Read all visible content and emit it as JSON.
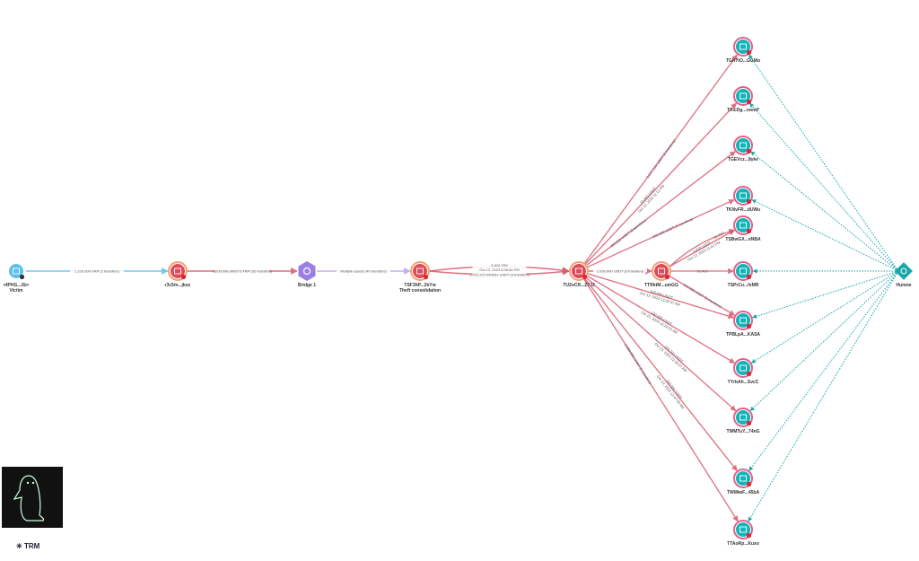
{
  "colors": {
    "victim": "#5bc0eb",
    "theft": "#e04b5a",
    "bridge": "#9b7fe6",
    "cashout": "#14b3b8",
    "huione": "#16a8a8",
    "flow": "#d9566a",
    "exchange_flow": "#1aa6a6",
    "ring": "#f09090"
  },
  "nodes": [
    {
      "id": "victim",
      "label": "r4PHG...iSrr",
      "sublabel": "Victim",
      "type": "victim",
      "icon": "wallet-icon"
    },
    {
      "id": "r3c",
      "label": "r3c5m...jkuc",
      "sublabel": "",
      "type": "theft",
      "icon": "wallet-icon"
    },
    {
      "id": "bridge",
      "label": "Bridge 1",
      "sublabel": "",
      "type": "bridge",
      "icon": "gear-icon"
    },
    {
      "id": "tsf",
      "label": "TSF3hP...2bYw",
      "sublabel": "Theft consolidation",
      "type": "theft",
      "icon": "wallet-icon"
    },
    {
      "id": "tuz",
      "label": "TUZeCR...Z7JJ",
      "sublabel": "",
      "type": "theft",
      "icon": "wallet-icon"
    },
    {
      "id": "ttr",
      "label": "TTRktM...umGG",
      "sublabel": "",
      "type": "theft",
      "icon": "wallet-icon"
    },
    {
      "id": "d1",
      "label": "TGR7tO...GGMo",
      "type": "cashout",
      "icon": "wallet-icon"
    },
    {
      "id": "d2",
      "label": "TXicDg...cwmP",
      "type": "cashout",
      "icon": "wallet-icon"
    },
    {
      "id": "d3",
      "label": "TGEVcz...8yke",
      "type": "cashout",
      "icon": "wallet-icon"
    },
    {
      "id": "d4",
      "label": "TKNvFR...dUWu",
      "type": "cashout",
      "icon": "wallet-icon"
    },
    {
      "id": "d5",
      "label": "TSBwGX...nNBA",
      "type": "cashout",
      "icon": "wallet-icon"
    },
    {
      "id": "d6",
      "label": "TSPrCu...fxMR",
      "type": "cashout",
      "icon": "wallet-icon"
    },
    {
      "id": "d7",
      "label": "TPBLpA...KASA",
      "type": "cashout",
      "icon": "wallet-icon"
    },
    {
      "id": "d8",
      "label": "TYrbAh...SvcC",
      "type": "cashout",
      "icon": "wallet-icon"
    },
    {
      "id": "d9",
      "label": "TWMTuY...74nG",
      "type": "cashout",
      "icon": "wallet-icon"
    },
    {
      "id": "d10",
      "label": "TWMiwF...45bA",
      "type": "cashout",
      "icon": "wallet-icon"
    },
    {
      "id": "d11",
      "label": "TTAoRp...Kuxo",
      "type": "cashout",
      "icon": "wallet-icon"
    },
    {
      "id": "huione",
      "label": "Huione",
      "type": "huione",
      "icon": "exchange-icon"
    }
  ],
  "edges": [
    {
      "from": "victim",
      "to": "r3c",
      "label": "1,210,000 XRP (2 transfers)",
      "style": "victim"
    },
    {
      "from": "r3c",
      "to": "bridge",
      "label": "1,200,998.999373 XRP (32 transfers)",
      "style": "theft"
    },
    {
      "from": "bridge",
      "to": "tsf",
      "label": "Multiple assets (40 transfers)",
      "style": "bridge"
    },
    {
      "from": "tsf",
      "to": "tuz",
      "label": "2,300 TRX",
      "label2": "Oct 12, 2023 8:36:54 PM",
      "style": "theft",
      "curve": -10
    },
    {
      "from": "tsf",
      "to": "tuz",
      "label": "2,101,222.049331 USDT (3 transfers)",
      "style": "theft",
      "curve": 8
    },
    {
      "from": "tuz",
      "to": "ttr",
      "label": "1,030,000 USDT (3 transfers)",
      "style": "theft"
    },
    {
      "from": "tuz",
      "to": "d1",
      "label": "1,017,416 USDT (3 transfers)",
      "style": "theft"
    },
    {
      "from": "tuz",
      "to": "d2",
      "label": "20,000 USDT",
      "label2": "Oct 12, 2023 11:13 PM",
      "style": "theft"
    },
    {
      "from": "tuz",
      "to": "d3",
      "label": "316,611 USDT (3 transfers)",
      "style": "theft"
    },
    {
      "from": "tuz",
      "to": "d4",
      "label": "200,000 USDT (2 transfers)",
      "style": "theft"
    },
    {
      "from": "ttr",
      "to": "d5",
      "label": "4,870 USDT",
      "label2": "Oct 12, 2023 11:42 PM",
      "style": "theft"
    },
    {
      "from": "ttr",
      "to": "d5",
      "label": "61,310",
      "style": "theft"
    },
    {
      "from": "ttr",
      "to": "d6",
      "label": "51,410",
      "style": "theft"
    },
    {
      "from": "ttr",
      "to": "d7",
      "label": "150,000 USDT (2 transfers)",
      "style": "theft"
    },
    {
      "from": "tuz",
      "to": "d7",
      "label": "100,000 USDT",
      "label2": "Oct 13, 2023 12:08:37 AM",
      "style": "theft"
    },
    {
      "from": "tuz",
      "to": "d8",
      "label": "100,000 USDT",
      "label2": "Oct 13, 2023 12:20:23 AM",
      "style": "theft"
    },
    {
      "from": "tuz",
      "to": "d9",
      "label": "100,000 USDT",
      "label2": "Oct 13, 2023 12:34:27 AM",
      "style": "theft"
    },
    {
      "from": "tuz",
      "to": "d10",
      "label": "100,000 USDT",
      "label2": "Oct 13, 2023 12:47:33 AM",
      "style": "theft"
    },
    {
      "from": "tuz",
      "to": "d11",
      "label": "2,000,000 USDT (5 transfers)",
      "style": "theft"
    }
  ],
  "exchange_links": [
    "d1",
    "d2",
    "d3",
    "d4",
    "d6",
    "d7",
    "d8",
    "d9",
    "d10",
    "d11"
  ],
  "logo": {
    "brand": "TRM"
  }
}
